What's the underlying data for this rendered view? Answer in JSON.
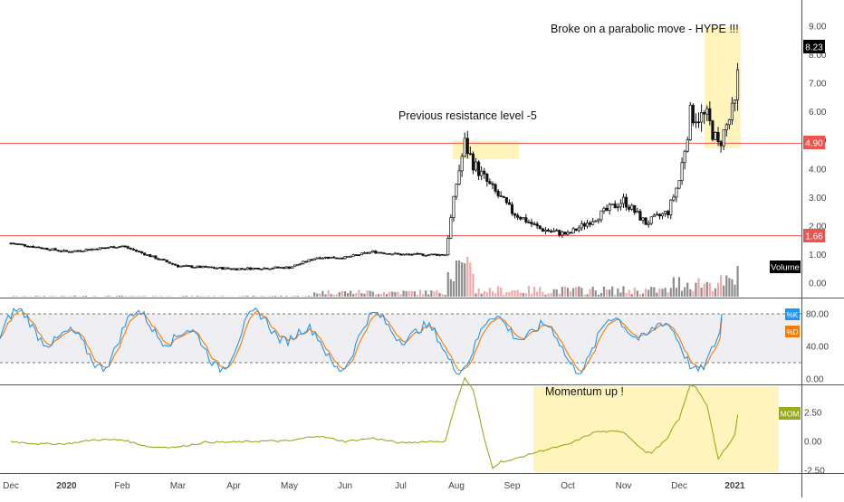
{
  "chart_data": [
    {
      "panel": "price",
      "type": "candlestick",
      "x_axis_labels": [
        "Dec",
        "2020",
        "Feb",
        "Mar",
        "Apr",
        "May",
        "Jun",
        "Jul",
        "Aug",
        "Sep",
        "Oct",
        "Nov",
        "Dec",
        "2021"
      ],
      "y_ticks": [
        "9.00",
        "8.00",
        "7.00",
        "6.00",
        "5.00",
        "4.00",
        "3.00",
        "2.00",
        "1.00",
        "0.00"
      ],
      "ylim": [
        -0.3,
        9.6
      ],
      "last_price": {
        "label": "8.23",
        "value": 8.23
      },
      "levels": [
        {
          "label": "4.90",
          "value": 4.9,
          "color": "#ef5350"
        },
        {
          "label": "1.66",
          "value": 1.66,
          "color": "#ef5350"
        }
      ],
      "volume_label": "Volume",
      "annotations": [
        "Previous resistance level -5",
        "Broke on a parabolic move - HYPE !!!"
      ],
      "price_path": [
        {
          "month": 0.0,
          "close": 1.4
        },
        {
          "month": 1.0,
          "close": 1.1
        },
        {
          "month": 2.0,
          "close": 1.3
        },
        {
          "month": 3.0,
          "close": 0.6
        },
        {
          "month": 4.0,
          "close": 0.5
        },
        {
          "month": 5.0,
          "close": 0.55
        },
        {
          "month": 5.5,
          "close": 0.9
        },
        {
          "month": 6.0,
          "close": 0.9
        },
        {
          "month": 6.5,
          "close": 1.1
        },
        {
          "month": 7.0,
          "close": 1.0
        },
        {
          "month": 7.8,
          "close": 1.0
        },
        {
          "month": 8.0,
          "close": 3.5
        },
        {
          "month": 8.15,
          "close": 4.9
        },
        {
          "month": 8.3,
          "close": 4.2
        },
        {
          "month": 8.6,
          "close": 3.4
        },
        {
          "month": 9.0,
          "close": 2.5
        },
        {
          "month": 9.5,
          "close": 1.9
        },
        {
          "month": 10.0,
          "close": 1.7
        },
        {
          "month": 10.5,
          "close": 2.3
        },
        {
          "month": 11.0,
          "close": 2.9
        },
        {
          "month": 11.4,
          "close": 2.1
        },
        {
          "month": 11.8,
          "close": 2.5
        },
        {
          "month": 12.0,
          "close": 3.6
        },
        {
          "month": 12.2,
          "close": 5.9
        },
        {
          "month": 12.5,
          "close": 5.8
        },
        {
          "month": 12.7,
          "close": 4.8
        },
        {
          "month": 13.0,
          "close": 6.2
        },
        {
          "month": 13.1,
          "close": 8.23
        }
      ]
    },
    {
      "panel": "stochastic",
      "type": "line",
      "series": [
        {
          "name": "%K",
          "color": "#2196f3"
        },
        {
          "name": "%D",
          "color": "#f57c00"
        }
      ],
      "y_ticks": [
        "80.00",
        "40.00",
        "0.00"
      ],
      "ylim": [
        -5,
        100
      ],
      "bands": [
        20,
        80
      ],
      "last_values": {
        "k": 80,
        "d": 75
      }
    },
    {
      "panel": "momentum",
      "type": "line",
      "series": [
        {
          "name": "MOM",
          "color": "#9aaa1f"
        }
      ],
      "y_ticks": [
        "2.50",
        "0.00",
        "-2.50"
      ],
      "ylim": [
        -3.2,
        5.2
      ],
      "annotation": "Momentum up !"
    }
  ],
  "colors": {
    "price_line": "#111111",
    "candle_up": "#ffffff",
    "candle_down": "#111111",
    "volume": "#8d8d8d",
    "volume_down": "#f2a8a8",
    "highlight": "#fff4b5",
    "level_line": "#ef5350",
    "band_fill": "#eeeef3",
    "axis_label_bg": "#000000"
  }
}
